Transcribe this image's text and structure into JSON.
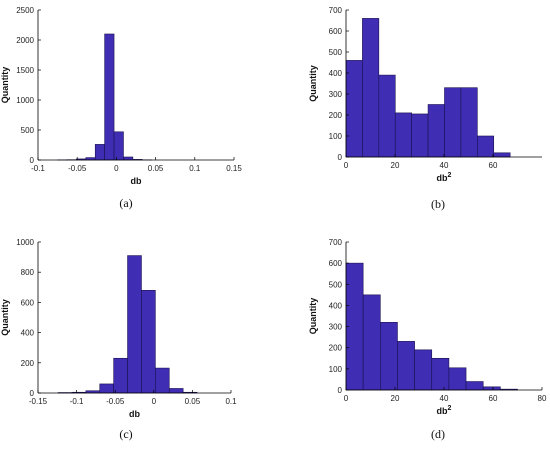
{
  "colors": {
    "bar_fill": "#3f2eb3",
    "bar_edge": "#1a1050",
    "axis": "#000000"
  },
  "chart_data": [
    {
      "type": "bar",
      "caption": "(a)",
      "xlabel": "db",
      "ylabel": "Quantity",
      "xlim": [
        -0.1,
        0.15
      ],
      "ylim": [
        0,
        2500
      ],
      "xticks": [
        -0.1,
        -0.05,
        0,
        0.05,
        0.1,
        0.15
      ],
      "xtick_labels": [
        "-0.1",
        "-0.05",
        "0",
        "0.05",
        "0.1",
        "0.15"
      ],
      "yticks": [
        0,
        500,
        1000,
        1500,
        2000,
        2500
      ],
      "ytick_labels": [
        "0",
        "500",
        "1000",
        "1500",
        "2000",
        "2500"
      ],
      "bins": [
        {
          "x0": -0.075,
          "x1": -0.063,
          "value": 2
        },
        {
          "x0": -0.063,
          "x1": -0.051,
          "value": 5
        },
        {
          "x0": -0.051,
          "x1": -0.039,
          "value": 18
        },
        {
          "x0": -0.039,
          "x1": -0.027,
          "value": 40
        },
        {
          "x0": -0.027,
          "x1": -0.015,
          "value": 260
        },
        {
          "x0": -0.015,
          "x1": -0.003,
          "value": 2100
        },
        {
          "x0": -0.003,
          "x1": 0.009,
          "value": 470
        },
        {
          "x0": 0.009,
          "x1": 0.021,
          "value": 50
        },
        {
          "x0": 0.021,
          "x1": 0.033,
          "value": 10
        },
        {
          "x0": 0.033,
          "x1": 0.045,
          "value": 3
        }
      ]
    },
    {
      "type": "bar",
      "caption": "(b)",
      "xlabel": "db",
      "xlabel_sup": "2",
      "ylabel": "Quantity",
      "xlim": [
        0,
        80
      ],
      "ylim": [
        0,
        700
      ],
      "xticks": [
        0,
        20,
        40,
        60
      ],
      "xtick_labels": [
        "0",
        "20",
        "40",
        "60"
      ],
      "yticks": [
        0,
        100,
        200,
        300,
        400,
        500,
        600,
        700
      ],
      "ytick_labels": [
        "0",
        "100",
        "200",
        "300",
        "400",
        "500",
        "600",
        "700"
      ],
      "bins": [
        {
          "x0": 0,
          "x1": 6.7,
          "value": 460
        },
        {
          "x0": 6.7,
          "x1": 13.4,
          "value": 660
        },
        {
          "x0": 13.4,
          "x1": 20.1,
          "value": 390
        },
        {
          "x0": 20.1,
          "x1": 26.8,
          "value": 210
        },
        {
          "x0": 26.8,
          "x1": 33.5,
          "value": 205
        },
        {
          "x0": 33.5,
          "x1": 40.2,
          "value": 250
        },
        {
          "x0": 40.2,
          "x1": 46.9,
          "value": 330
        },
        {
          "x0": 46.9,
          "x1": 53.6,
          "value": 330
        },
        {
          "x0": 53.6,
          "x1": 60.3,
          "value": 100
        },
        {
          "x0": 60.3,
          "x1": 67.0,
          "value": 20
        }
      ]
    },
    {
      "type": "bar",
      "caption": "(c)",
      "xlabel": "db",
      "ylabel": "Quantity",
      "xlim": [
        -0.15,
        0.1
      ],
      "ylim": [
        0,
        1000
      ],
      "xticks": [
        -0.15,
        -0.1,
        -0.05,
        0,
        0.05,
        0.1
      ],
      "xtick_labels": [
        "-0.15",
        "-0.1",
        "-0.05",
        "0",
        "0.05",
        "0.1"
      ],
      "yticks": [
        0,
        200,
        400,
        600,
        800,
        1000
      ],
      "ytick_labels": [
        "0",
        "200",
        "400",
        "600",
        "800",
        "1000"
      ],
      "bins": [
        {
          "x0": -0.124,
          "x1": -0.106,
          "value": 3
        },
        {
          "x0": -0.106,
          "x1": -0.088,
          "value": 5
        },
        {
          "x0": -0.088,
          "x1": -0.07,
          "value": 15
        },
        {
          "x0": -0.07,
          "x1": -0.052,
          "value": 60
        },
        {
          "x0": -0.052,
          "x1": -0.034,
          "value": 230
        },
        {
          "x0": -0.034,
          "x1": -0.016,
          "value": 910
        },
        {
          "x0": -0.016,
          "x1": 0.002,
          "value": 680
        },
        {
          "x0": 0.002,
          "x1": 0.02,
          "value": 165
        },
        {
          "x0": 0.02,
          "x1": 0.038,
          "value": 30
        },
        {
          "x0": 0.038,
          "x1": 0.056,
          "value": 5
        }
      ]
    },
    {
      "type": "bar",
      "caption": "(d)",
      "xlabel": "db",
      "xlabel_sup": "2",
      "ylabel": "Quantity",
      "xlim": [
        0,
        80
      ],
      "ylim": [
        0,
        700
      ],
      "xticks": [
        0,
        20,
        40,
        60,
        80
      ],
      "xtick_labels": [
        "0",
        "20",
        "40",
        "60",
        "80"
      ],
      "yticks": [
        0,
        100,
        200,
        300,
        400,
        500,
        600,
        700
      ],
      "ytick_labels": [
        "0",
        "100",
        "200",
        "300",
        "400",
        "500",
        "600",
        "700"
      ],
      "bins": [
        {
          "x0": 0,
          "x1": 7,
          "value": 600
        },
        {
          "x0": 7,
          "x1": 14,
          "value": 450
        },
        {
          "x0": 14,
          "x1": 21,
          "value": 320
        },
        {
          "x0": 21,
          "x1": 28,
          "value": 230
        },
        {
          "x0": 28,
          "x1": 35,
          "value": 190
        },
        {
          "x0": 35,
          "x1": 42,
          "value": 150
        },
        {
          "x0": 42,
          "x1": 49,
          "value": 105
        },
        {
          "x0": 49,
          "x1": 56,
          "value": 40
        },
        {
          "x0": 56,
          "x1": 63,
          "value": 15
        },
        {
          "x0": 63,
          "x1": 70,
          "value": 4
        }
      ]
    }
  ]
}
